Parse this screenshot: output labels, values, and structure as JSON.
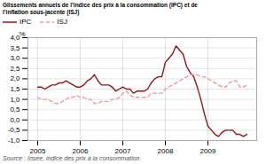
{
  "chart_data": {
    "type": "line",
    "title": "Glissements annuels de l’indice des prix à la consommation (IPC) et de\nl’inflation sous-jacente (ISJ)",
    "source": "Source : Insee, indice des prix à la consommation",
    "ylabel": "%",
    "categories": [
      "2005",
      null,
      null,
      null,
      null,
      null,
      null,
      null,
      null,
      null,
      null,
      null,
      "2006",
      null,
      null,
      null,
      null,
      null,
      null,
      null,
      null,
      null,
      null,
      null,
      "2007",
      null,
      null,
      null,
      null,
      null,
      null,
      null,
      null,
      null,
      null,
      null,
      "2008",
      null,
      null,
      null,
      null,
      null,
      null,
      null,
      null,
      null,
      null,
      null,
      "2009",
      null,
      null,
      null,
      null,
      null,
      null,
      null,
      null,
      null,
      null,
      null
    ],
    "series": [
      {
        "name": "IPC",
        "color": "#8B1A1A",
        "line_style": "solid",
        "values": [
          1.6,
          1.6,
          1.5,
          1.6,
          1.7,
          1.7,
          1.8,
          1.8,
          1.9,
          1.8,
          1.7,
          1.6,
          1.6,
          1.7,
          1.9,
          2.0,
          2.2,
          1.9,
          1.7,
          1.7,
          1.7,
          1.6,
          1.4,
          1.5,
          1.6,
          1.5,
          1.5,
          1.3,
          1.4,
          1.4,
          1.4,
          1.5,
          1.8,
          2.0,
          2.1,
          2.1,
          2.8,
          3.0,
          3.2,
          3.6,
          3.4,
          3.2,
          2.6,
          2.3,
          2.1,
          1.6,
          1.0,
          0.3,
          -0.3,
          -0.5,
          -0.7,
          -0.8,
          -0.6,
          -0.5,
          -0.5,
          -0.5,
          -0.7,
          -0.7,
          -0.8,
          -0.7
        ]
      },
      {
        "name": "ISJ",
        "color": "#E8A0A0",
        "line_style": "dashed",
        "values": [
          1.1,
          1.0,
          1.0,
          1.0,
          0.9,
          0.8,
          0.8,
          0.9,
          1.0,
          1.1,
          1.1,
          1.2,
          1.1,
          1.1,
          1.0,
          1.0,
          0.8,
          0.8,
          0.9,
          0.9,
          0.9,
          1.0,
          1.0,
          1.1,
          1.3,
          1.4,
          1.2,
          1.1,
          1.1,
          1.1,
          1.1,
          1.1,
          1.3,
          1.3,
          1.3,
          1.3,
          1.5,
          1.6,
          1.7,
          1.8,
          1.9,
          2.0,
          2.1,
          2.2,
          2.2,
          2.2,
          2.1,
          2.1,
          2.0,
          1.9,
          1.8,
          1.7,
          1.6,
          1.6,
          1.8,
          1.9,
          1.9,
          1.6,
          1.6,
          1.7
        ]
      }
    ],
    "ylim": [
      -1.0,
      4.0
    ],
    "yticks": [
      {
        "value": -1.0,
        "label": "-1,0"
      },
      {
        "value": -0.5,
        "label": "-0,5"
      },
      {
        "value": 0.0,
        "label": "0,0"
      },
      {
        "value": 0.5,
        "label": "0,5"
      },
      {
        "value": 1.0,
        "label": "1,0"
      },
      {
        "value": 1.5,
        "label": "1,5"
      },
      {
        "value": 2.0,
        "label": "2,0"
      },
      {
        "value": 2.5,
        "label": "2,5"
      },
      {
        "value": 3.0,
        "label": "3,0"
      },
      {
        "value": 3.5,
        "label": "3,5"
      },
      {
        "value": 4.0,
        "label": "4,0"
      }
    ],
    "grid": true,
    "legend": "upper left"
  }
}
